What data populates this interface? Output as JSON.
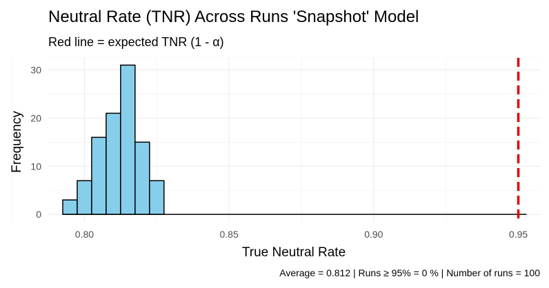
{
  "chart_data": {
    "type": "bar",
    "title": "Neutral Rate (TNR) Across Runs 'Snapshot' Model",
    "subtitle": "Red line = expected TNR (1 - α)",
    "xlabel": "True Neutral Rate",
    "ylabel": "Frequency",
    "caption": "Average = 0.812 | Runs ≥ 95% = 0 % | Number of runs = 100",
    "xlim": [
      0.7875,
      0.9575
    ],
    "ylim": [
      -1.55,
      32.5
    ],
    "x_ticks": [
      0.8,
      0.85,
      0.9,
      0.95
    ],
    "x_tick_labels": [
      "0.80",
      "0.85",
      "0.90",
      "0.95"
    ],
    "y_ticks": [
      0,
      10,
      20,
      30
    ],
    "y_tick_labels": [
      "0",
      "10",
      "20",
      "30"
    ],
    "bin_width": 0.005,
    "bins": [
      {
        "x_start": 0.7925,
        "x_end": 0.7975,
        "count": 3
      },
      {
        "x_start": 0.7975,
        "x_end": 0.8025,
        "count": 7
      },
      {
        "x_start": 0.8025,
        "x_end": 0.8075,
        "count": 16
      },
      {
        "x_start": 0.8075,
        "x_end": 0.8125,
        "count": 21
      },
      {
        "x_start": 0.8125,
        "x_end": 0.8175,
        "count": 31
      },
      {
        "x_start": 0.8175,
        "x_end": 0.8225,
        "count": 15
      },
      {
        "x_start": 0.8225,
        "x_end": 0.8275,
        "count": 7
      }
    ],
    "reference_line": {
      "x": 0.95,
      "style": "dashed"
    },
    "colors": {
      "bar_fill": "#87ceeb",
      "bar_outline": "#000000",
      "reference_line": "#e00000",
      "background": "#ffffff",
      "grid": "#ebebeb"
    },
    "grid": true,
    "legend": "none"
  }
}
